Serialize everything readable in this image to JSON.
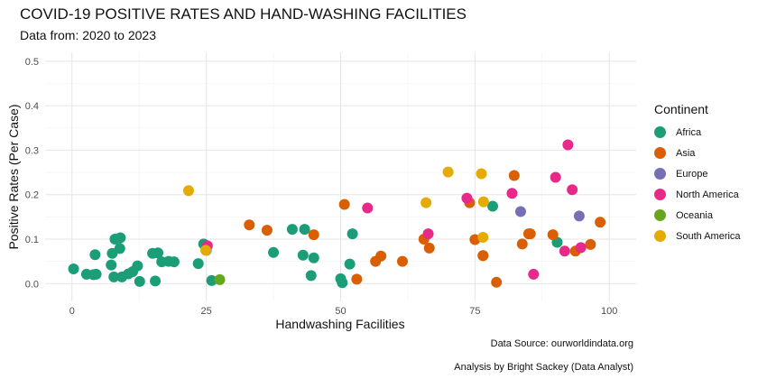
{
  "chart_data": {
    "type": "scatter",
    "title": "COVID-19 POSITIVE RATES AND HAND-WASHING FACILITIES",
    "subtitle": "Data from: 2020 to 2023",
    "xlabel": "Handwashing Facilities",
    "ylabel": "Positive Rates (Per Case)",
    "xlim": [
      -5,
      105
    ],
    "ylim": [
      -0.04,
      0.52
    ],
    "xticks": [
      0,
      25,
      50,
      75,
      100
    ],
    "yticks": [
      0.0,
      0.1,
      0.2,
      0.3,
      0.4,
      0.5
    ],
    "ytick_labels": [
      "0.0",
      "0.1",
      "0.2",
      "0.3",
      "0.4",
      "0.5"
    ],
    "grid": true,
    "legend_title": "Continent",
    "legend_position": "right",
    "series": [
      {
        "name": "Africa",
        "color": "#1b9e77",
        "points": [
          [
            0.3,
            0.033
          ],
          [
            2.7,
            0.021
          ],
          [
            4,
            0.02
          ],
          [
            4.3,
            0.065
          ],
          [
            4.5,
            0.021
          ],
          [
            7.3,
            0.042
          ],
          [
            7.5,
            0.068
          ],
          [
            7.8,
            0.015
          ],
          [
            8,
            0.1
          ],
          [
            8.9,
            0.079
          ],
          [
            9,
            0.103
          ],
          [
            9.3,
            0.015
          ],
          [
            10.5,
            0.022
          ],
          [
            11.3,
            0.027
          ],
          [
            12.2,
            0.04
          ],
          [
            12.6,
            0.005
          ],
          [
            15,
            0.068
          ],
          [
            15.5,
            0.006
          ],
          [
            16,
            0.069
          ],
          [
            16.7,
            0.049
          ],
          [
            18,
            0.05
          ],
          [
            19,
            0.049
          ],
          [
            23.5,
            0.045
          ],
          [
            24.5,
            0.089
          ],
          [
            25,
            0.075
          ],
          [
            26,
            0.007
          ],
          [
            37.5,
            0.07
          ],
          [
            41,
            0.122
          ],
          [
            43,
            0.064
          ],
          [
            43.3,
            0.122
          ],
          [
            44.5,
            0.018
          ],
          [
            45,
            0.058
          ],
          [
            50,
            0.011
          ],
          [
            50.3,
            0.002
          ],
          [
            51.7,
            0.044
          ],
          [
            52.2,
            0.112
          ],
          [
            76.5,
            0.063
          ],
          [
            78.3,
            0.174
          ],
          [
            90.3,
            0.093
          ]
        ]
      },
      {
        "name": "Asia",
        "color": "#d95f02",
        "points": [
          [
            33,
            0.132
          ],
          [
            36.3,
            0.12
          ],
          [
            45,
            0.11
          ],
          [
            50.7,
            0.178
          ],
          [
            53,
            0.01
          ],
          [
            56.5,
            0.05
          ],
          [
            57.5,
            0.062
          ],
          [
            61.5,
            0.05
          ],
          [
            65.5,
            0.1
          ],
          [
            66.5,
            0.08
          ],
          [
            74,
            0.182
          ],
          [
            75,
            0.099
          ],
          [
            76.5,
            0.063
          ],
          [
            79,
            0.003
          ],
          [
            82.3,
            0.243
          ],
          [
            83.8,
            0.089
          ],
          [
            85,
            0.112
          ],
          [
            85.3,
            0.112
          ],
          [
            89.5,
            0.11
          ],
          [
            93.7,
            0.073
          ],
          [
            96.5,
            0.088
          ],
          [
            98.3,
            0.138
          ]
        ]
      },
      {
        "name": "Europe",
        "color": "#7570b3",
        "points": [
          [
            83.5,
            0.162
          ],
          [
            94.4,
            0.152
          ]
        ]
      },
      {
        "name": "North America",
        "color": "#e7298a",
        "points": [
          [
            25.2,
            0.085
          ],
          [
            55,
            0.17
          ],
          [
            66.3,
            0.112
          ],
          [
            73.5,
            0.192
          ],
          [
            81.9,
            0.203
          ],
          [
            85.9,
            0.021
          ],
          [
            90,
            0.239
          ],
          [
            91.7,
            0.073
          ],
          [
            92.3,
            0.312
          ],
          [
            93.1,
            0.211
          ],
          [
            94.7,
            0.081
          ]
        ]
      },
      {
        "name": "Oceania",
        "color": "#66a61e",
        "points": [
          [
            27.5,
            0.009
          ]
        ]
      },
      {
        "name": "South America",
        "color": "#e6ab02",
        "points": [
          [
            21.7,
            0.209
          ],
          [
            24.9,
            0.075
          ],
          [
            65.9,
            0.182
          ],
          [
            70,
            0.251
          ],
          [
            76.2,
            0.247
          ],
          [
            76.5,
            0.104
          ],
          [
            76.6,
            0.184
          ]
        ]
      }
    ],
    "captions": [
      "Data Source: ourworldindata.org",
      "Analysis by Bright Sackey (Data Analyst)"
    ]
  }
}
